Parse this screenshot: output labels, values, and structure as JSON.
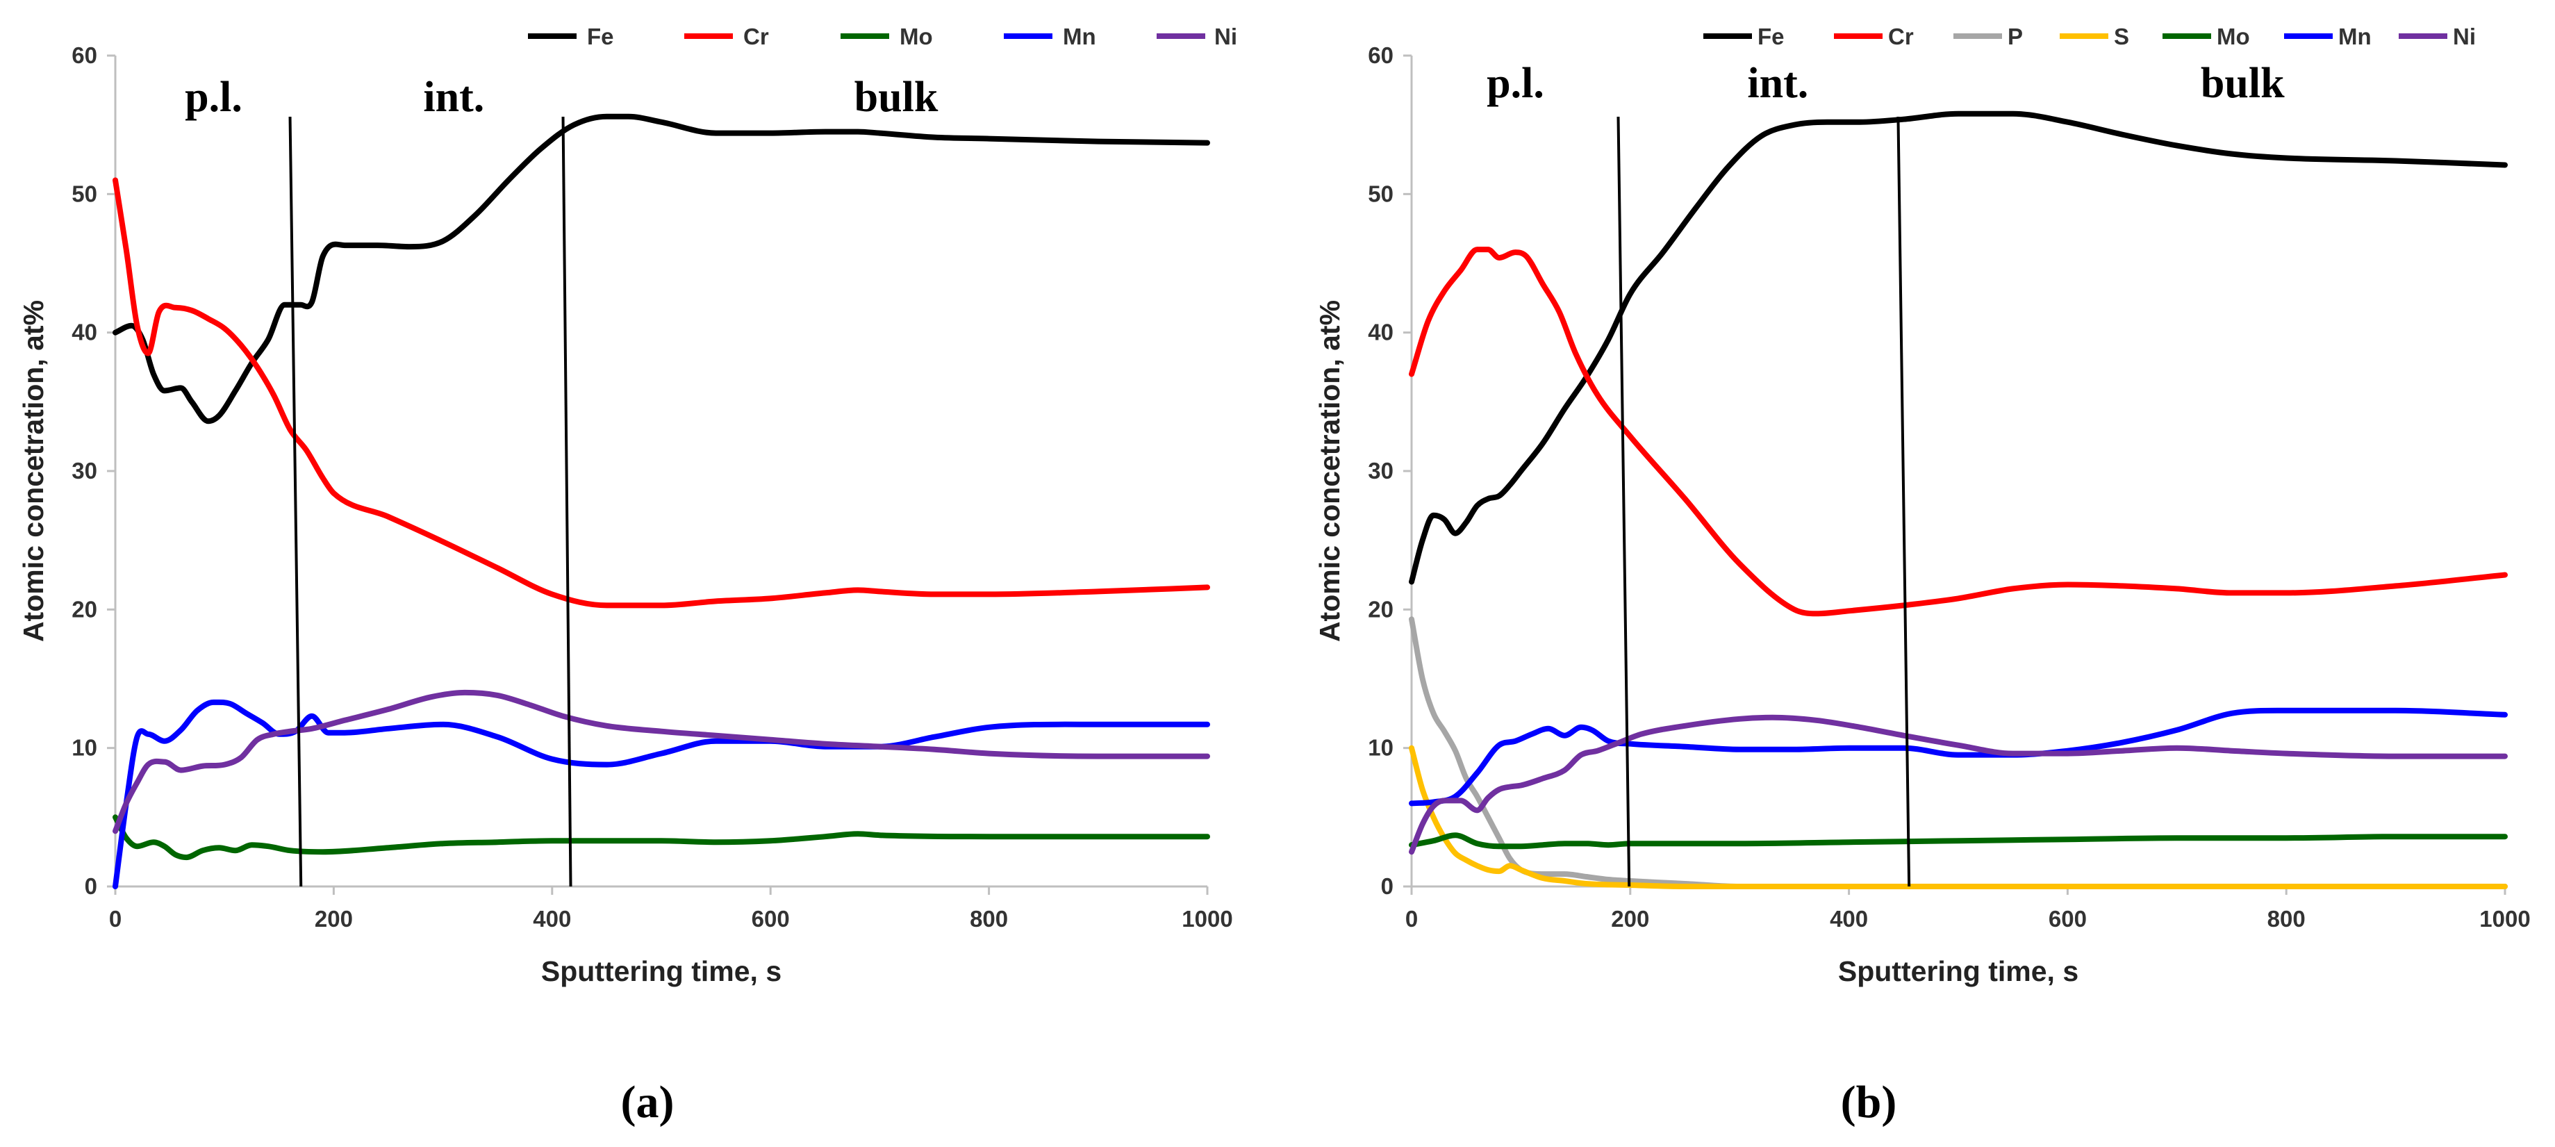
{
  "chart_data": [
    {
      "type": "line",
      "panel_label": "(a)",
      "xlabel": "Sputtering time, s",
      "ylabel": "Atomic concetration, at%",
      "xlim": [
        0,
        1000
      ],
      "ylim": [
        0,
        60
      ],
      "xticks": [
        0,
        200,
        400,
        600,
        800,
        1000
      ],
      "yticks": [
        0,
        10,
        20,
        30,
        40,
        50,
        60
      ],
      "legend_position": "top",
      "regions": [
        {
          "label": "p.l.",
          "x": 90
        },
        {
          "label": "int.",
          "x": 310
        },
        {
          "label": "bulk",
          "x": 715
        }
      ],
      "dividers": [
        {
          "x_top": 160,
          "x_bottom": 170
        },
        {
          "x_top": 410,
          "x_bottom": 417
        }
      ],
      "series": [
        {
          "name": "Fe",
          "color": "#000000",
          "x": [
            0,
            15,
            25,
            35,
            45,
            60,
            70,
            85,
            95,
            110,
            125,
            140,
            155,
            170,
            180,
            190,
            210,
            240,
            270,
            300,
            330,
            360,
            390,
            420,
            450,
            470,
            500,
            550,
            600,
            650,
            680,
            700,
            750,
            800,
            900,
            1000
          ],
          "y": [
            40,
            40.5,
            39.5,
            37,
            35.8,
            36,
            35,
            33.6,
            34,
            35.8,
            37.8,
            39.5,
            42,
            42,
            42.2,
            45.5,
            46.3,
            46.3,
            46.2,
            46.6,
            48.5,
            51,
            53.3,
            55,
            55.6,
            55.6,
            55.2,
            54.4,
            54.4,
            54.5,
            54.5,
            54.4,
            54.1,
            54,
            53.8,
            53.7
          ]
        },
        {
          "name": "Cr",
          "color": "#ff0000",
          "x": [
            0,
            10,
            20,
            30,
            40,
            55,
            70,
            85,
            100,
            115,
            130,
            145,
            160,
            175,
            190,
            200,
            250,
            300,
            350,
            400,
            450,
            500,
            550,
            600,
            650,
            680,
            700,
            750,
            800,
            900,
            1000
          ],
          "y": [
            51,
            46,
            40.5,
            38.5,
            41.5,
            41.8,
            41.6,
            41,
            40.3,
            39.1,
            37.5,
            35.5,
            33,
            31.5,
            29.5,
            28.4,
            26.7,
            24.9,
            23,
            21.1,
            20.3,
            20.3,
            20.6,
            20.8,
            21.2,
            21.4,
            21.3,
            21.1,
            21.1,
            21.3,
            21.6
          ]
        },
        {
          "name": "Mo",
          "color": "#006600",
          "x": [
            0,
            10,
            20,
            35,
            45,
            55,
            65,
            80,
            95,
            110,
            125,
            140,
            160,
            190,
            250,
            300,
            350,
            400,
            450,
            500,
            550,
            600,
            650,
            680,
            700,
            800,
            900,
            1000
          ],
          "y": [
            5,
            3.5,
            2.9,
            3.2,
            2.9,
            2.3,
            2.1,
            2.6,
            2.8,
            2.6,
            3,
            2.9,
            2.6,
            2.5,
            2.8,
            3.1,
            3.2,
            3.3,
            3.3,
            3.3,
            3.2,
            3.3,
            3.6,
            3.8,
            3.7,
            3.6,
            3.6,
            3.6
          ]
        },
        {
          "name": "Mn",
          "color": "#0000ff",
          "x": [
            0,
            10,
            20,
            30,
            45,
            60,
            75,
            90,
            105,
            120,
            135,
            150,
            165,
            180,
            195,
            210,
            250,
            300,
            350,
            400,
            450,
            500,
            550,
            600,
            650,
            700,
            750,
            800,
            900,
            1000
          ],
          "y": [
            0,
            6,
            10.8,
            11,
            10.5,
            11.3,
            12.7,
            13.3,
            13.2,
            12.5,
            11.8,
            11,
            11.2,
            12.3,
            11.1,
            11.1,
            11.4,
            11.7,
            10.8,
            9.2,
            8.8,
            9.6,
            10.5,
            10.5,
            10.1,
            10.1,
            10.8,
            11.5,
            11.7,
            11.7
          ]
        },
        {
          "name": "Ni",
          "color": "#7030a0",
          "x": [
            0,
            10,
            20,
            30,
            45,
            60,
            80,
            100,
            115,
            130,
            145,
            160,
            180,
            210,
            250,
            290,
            320,
            350,
            380,
            410,
            450,
            500,
            550,
            600,
            650,
            700,
            750,
            800,
            900,
            1000
          ],
          "y": [
            4,
            6,
            7.5,
            8.8,
            9,
            8.4,
            8.7,
            8.8,
            9.3,
            10.6,
            11,
            11.2,
            11.4,
            12,
            12.8,
            13.7,
            14,
            13.8,
            13.1,
            12.3,
            11.6,
            11.2,
            10.9,
            10.6,
            10.3,
            10.1,
            9.9,
            9.6,
            9.4,
            9.4
          ]
        }
      ]
    },
    {
      "type": "line",
      "panel_label": "(b)",
      "xlabel": "Sputtering time, s",
      "ylabel": "Atomic concetration, at%",
      "xlim": [
        0,
        1000
      ],
      "ylim": [
        0,
        60
      ],
      "xticks": [
        0,
        200,
        400,
        600,
        800,
        1000
      ],
      "yticks": [
        0,
        10,
        20,
        30,
        40,
        50,
        60
      ],
      "legend_position": "top",
      "regions": [
        {
          "label": "p.l.",
          "x": 95
        },
        {
          "label": "int.",
          "x": 335
        },
        {
          "label": "bulk",
          "x": 760
        }
      ],
      "dividers": [
        {
          "x_top": 189,
          "x_bottom": 199
        },
        {
          "x_top": 445,
          "x_bottom": 455
        }
      ],
      "series": [
        {
          "name": "Fe",
          "color": "#000000",
          "x": [
            0,
            10,
            20,
            30,
            40,
            50,
            60,
            70,
            80,
            90,
            100,
            120,
            140,
            160,
            180,
            200,
            230,
            260,
            290,
            320,
            350,
            380,
            410,
            450,
            500,
            550,
            600,
            650,
            700,
            750,
            800,
            900,
            1000
          ],
          "y": [
            22,
            25,
            26.8,
            26.5,
            25.5,
            26.3,
            27.5,
            28,
            28.2,
            29,
            30,
            32,
            34.5,
            36.8,
            39.5,
            42.8,
            45.8,
            49,
            52,
            54.2,
            55,
            55.2,
            55.2,
            55.4,
            55.8,
            55.8,
            55.2,
            54.3,
            53.5,
            52.9,
            52.6,
            52.4,
            52.1
          ]
        },
        {
          "name": "Cr",
          "color": "#ff0000",
          "x": [
            0,
            15,
            30,
            45,
            60,
            70,
            80,
            95,
            105,
            120,
            135,
            150,
            170,
            200,
            250,
            300,
            350,
            370,
            400,
            450,
            500,
            550,
            600,
            650,
            700,
            750,
            800,
            900,
            1000
          ],
          "y": [
            37,
            40.8,
            43,
            44.5,
            46,
            46,
            45.4,
            45.8,
            45.5,
            43.5,
            41.5,
            38.5,
            35.5,
            32.5,
            28,
            23.3,
            20,
            19.7,
            19.9,
            20.3,
            20.8,
            21.5,
            21.8,
            21.7,
            21.5,
            21.2,
            21.2,
            21.7,
            22.5
          ]
        },
        {
          "name": "P",
          "color": "#a6a6a6",
          "x": [
            0,
            10,
            20,
            30,
            40,
            50,
            60,
            70,
            80,
            90,
            100,
            120,
            140,
            160,
            180,
            200,
            250,
            300,
            1000
          ],
          "y": [
            19.3,
            15,
            12.5,
            11.2,
            9.8,
            7.8,
            6.5,
            5,
            3.5,
            2,
            1.2,
            0.9,
            0.9,
            0.7,
            0.5,
            0.4,
            0.2,
            0,
            0
          ]
        },
        {
          "name": "S",
          "color": "#ffc000",
          "x": [
            0,
            10,
            20,
            30,
            40,
            50,
            60,
            70,
            80,
            90,
            100,
            120,
            140,
            160,
            200,
            250,
            1000
          ],
          "y": [
            10,
            7,
            5,
            3.5,
            2.4,
            1.9,
            1.5,
            1.2,
            1.1,
            1.5,
            1.2,
            0.6,
            0.4,
            0.2,
            0.1,
            0,
            0
          ]
        },
        {
          "name": "Mo",
          "color": "#006600",
          "x": [
            0,
            20,
            40,
            60,
            80,
            100,
            120,
            140,
            160,
            180,
            200,
            300,
            400,
            500,
            600,
            700,
            800,
            900,
            1000
          ],
          "y": [
            3,
            3.3,
            3.7,
            3.1,
            2.9,
            2.9,
            3,
            3.1,
            3.1,
            3,
            3.1,
            3.1,
            3.2,
            3.3,
            3.4,
            3.5,
            3.5,
            3.6,
            3.6
          ]
        },
        {
          "name": "Mn",
          "color": "#0000ff",
          "x": [
            0,
            20,
            40,
            60,
            80,
            95,
            110,
            125,
            140,
            155,
            165,
            180,
            200,
            250,
            300,
            350,
            400,
            450,
            500,
            550,
            600,
            650,
            700,
            750,
            800,
            900,
            1000
          ],
          "y": [
            6,
            6.1,
            6.5,
            8.2,
            10.2,
            10.5,
            11,
            11.4,
            10.9,
            11.5,
            11.3,
            10.5,
            10.3,
            10.1,
            9.9,
            9.9,
            10,
            10,
            9.5,
            9.5,
            9.8,
            10.4,
            11.3,
            12.5,
            12.7,
            12.7,
            12.4
          ]
        },
        {
          "name": "Ni",
          "color": "#7030a0",
          "x": [
            0,
            10,
            20,
            30,
            45,
            60,
            70,
            80,
            90,
            100,
            120,
            140,
            155,
            170,
            190,
            210,
            250,
            300,
            330,
            370,
            410,
            450,
            500,
            550,
            600,
            650,
            700,
            750,
            800,
            900,
            1000
          ],
          "y": [
            2.5,
            4.5,
            5.8,
            6.2,
            6.2,
            5.5,
            6.4,
            7,
            7.2,
            7.3,
            7.8,
            8.4,
            9.5,
            9.8,
            10.4,
            11,
            11.6,
            12.1,
            12.2,
            12,
            11.5,
            10.9,
            10.2,
            9.6,
            9.6,
            9.8,
            10,
            9.8,
            9.6,
            9.4,
            9.4
          ]
        }
      ]
    }
  ]
}
